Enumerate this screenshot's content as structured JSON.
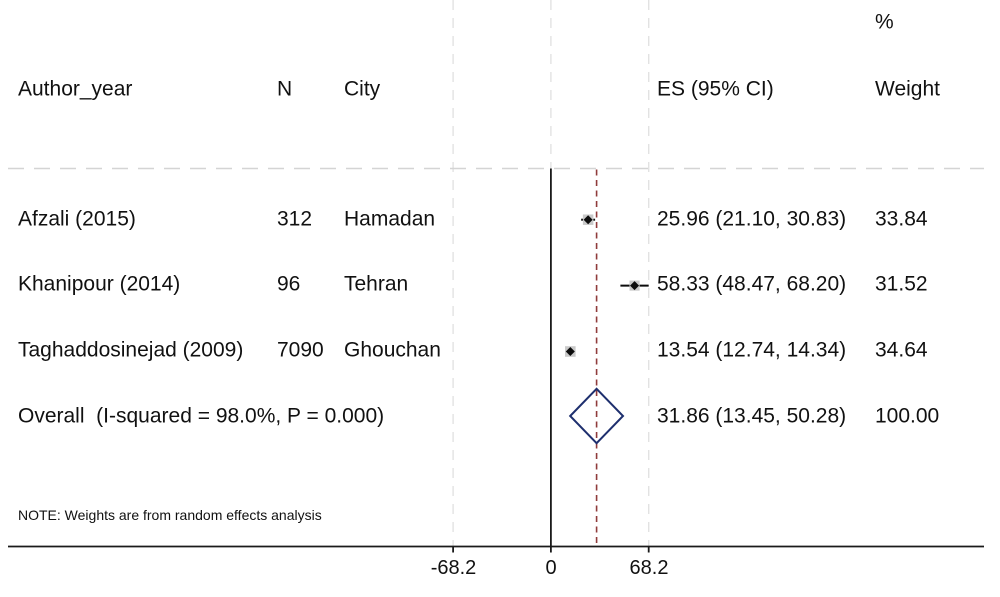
{
  "figure": {
    "header": {
      "author_year": "Author_year",
      "n": "N",
      "city": "City",
      "es": "ES (95% CI)",
      "percent": "%",
      "weight": "Weight"
    },
    "note": "NOTE: Weights are from random effects analysis"
  },
  "chart_data": {
    "type": "forest",
    "title": "",
    "xlabel": "",
    "x_ticks": [
      -68.2,
      0,
      68.2
    ],
    "x_tick_labels": [
      "-68.2",
      "0",
      "68.2"
    ],
    "null_line_x": 0,
    "overall_dashed_line_x": 31.86,
    "grid_lines_x": [
      -68.2,
      0,
      68.2
    ],
    "studies": [
      {
        "author_year": "Afzali (2015)",
        "n": "312",
        "city": "Hamadan",
        "es": 25.96,
        "ci_low": 21.1,
        "ci_high": 30.83,
        "es_label": "25.96 (21.10, 30.83)",
        "weight": 33.84,
        "weight_label": "33.84"
      },
      {
        "author_year": "Khanipour (2014)",
        "n": "96",
        "city": "Tehran",
        "es": 58.33,
        "ci_low": 48.47,
        "ci_high": 68.2,
        "es_label": "58.33 (48.47, 68.20)",
        "weight": 31.52,
        "weight_label": "31.52"
      },
      {
        "author_year": "Taghaddosinejad (2009)",
        "n": "7090",
        "city": "Ghouchan",
        "es": 13.54,
        "ci_low": 12.74,
        "ci_high": 14.34,
        "es_label": "13.54 (12.74, 14.34)",
        "weight": 34.64,
        "weight_label": "34.64"
      }
    ],
    "overall": {
      "label": "Overall  (I-squared = 98.0%, P = 0.000)",
      "es": 31.86,
      "ci_low": 13.45,
      "ci_high": 50.28,
      "es_label": "31.86 (13.45, 50.28)",
      "weight_label": "100.00"
    },
    "colors": {
      "text": "#111111",
      "axis": "#1a1a1a",
      "grid": "#e2e2e2",
      "separator": "#d4d4d4",
      "null_line": "#1a1a1a",
      "overall_line": "#8f3b3b",
      "marker": "#0c0c0c",
      "marker_box": "#c9c9c9",
      "diamond": "#1e2f6e"
    }
  }
}
